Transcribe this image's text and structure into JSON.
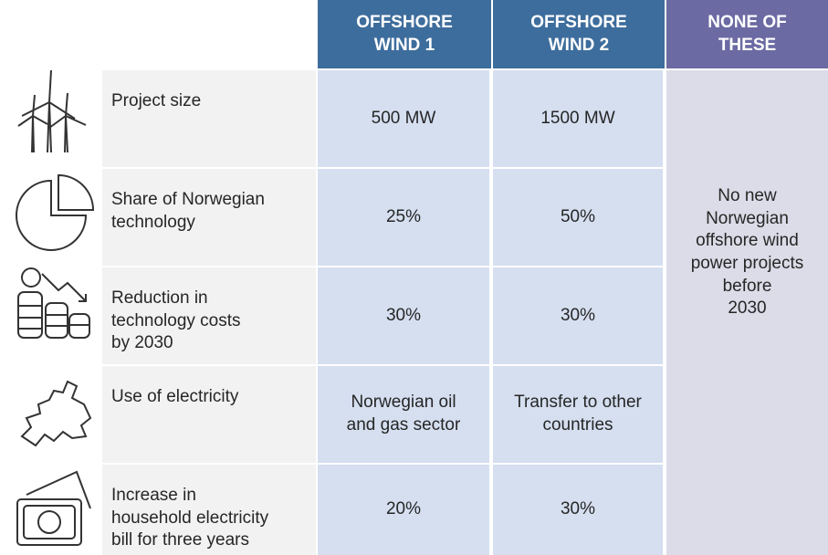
{
  "table": {
    "headers": [
      [
        "OFFSHORE",
        "WIND 1"
      ],
      [
        "OFFSHORE",
        "WIND 2"
      ],
      [
        "NONE OF",
        "THESE"
      ]
    ],
    "rows": [
      {
        "attribute": [
          "Project size"
        ],
        "values": [
          [
            "500 MW"
          ],
          [
            "1500 MW"
          ]
        ]
      },
      {
        "attribute": [
          "Share of Norwegian",
          "technology"
        ],
        "values": [
          [
            "25%"
          ],
          [
            "50%"
          ]
        ]
      },
      {
        "attribute": [
          "Reduction in",
          "technology costs",
          "by 2030"
        ],
        "values": [
          [
            "30%"
          ],
          [
            "30%"
          ]
        ]
      },
      {
        "attribute": [
          "Use of  electricity"
        ],
        "values": [
          [
            "Norwegian oil",
            "and gas sector"
          ],
          [
            "Transfer to other",
            "countries"
          ]
        ]
      },
      {
        "attribute": [
          "Increase in",
          "household electricity",
          "bill for three years"
        ],
        "values": [
          [
            "20%"
          ],
          [
            "30%"
          ]
        ]
      }
    ],
    "none_text": [
      "No new",
      "Norwegian",
      "offshore wind",
      "power projects",
      "before",
      "2030"
    ]
  }
}
